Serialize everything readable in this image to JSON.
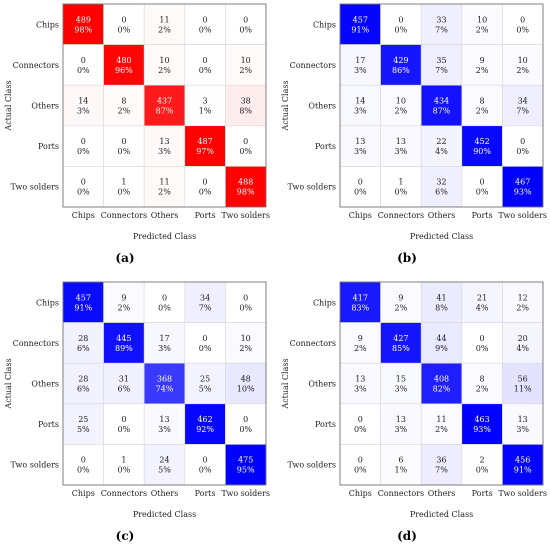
{
  "chart_data": [
    {
      "type": "heatmap",
      "panel_label": "(a)",
      "colormap": "red",
      "accent_color": "#ff0000",
      "xlabel": "Predicted Class",
      "ylabel": "Actual Class",
      "categories": [
        "Chips",
        "Connectors",
        "Others",
        "Ports",
        "Two solders"
      ],
      "counts": [
        [
          489,
          0,
          11,
          0,
          0
        ],
        [
          0,
          480,
          10,
          0,
          10
        ],
        [
          14,
          8,
          437,
          3,
          38
        ],
        [
          0,
          0,
          13,
          487,
          0
        ],
        [
          0,
          1,
          11,
          0,
          488
        ]
      ],
      "percents": [
        "98%",
        "0%",
        "2%",
        "0%",
        "0%",
        "0%",
        "96%",
        "2%",
        "0%",
        "2%",
        "3%",
        "2%",
        "87%",
        "1%",
        "8%",
        "0%",
        "0%",
        "3%",
        "97%",
        "0%",
        "0%",
        "0%",
        "2%",
        "0%",
        "98%"
      ]
    },
    {
      "type": "heatmap",
      "panel_label": "(b)",
      "colormap": "blue",
      "accent_color": "#0000ff",
      "xlabel": "Predicted Class",
      "ylabel": "Actual Class",
      "categories": [
        "Chips",
        "Connectors",
        "Others",
        "Ports",
        "Two solders"
      ],
      "counts": [
        [
          457,
          0,
          33,
          10,
          0
        ],
        [
          17,
          429,
          35,
          9,
          10
        ],
        [
          14,
          10,
          434,
          8,
          34
        ],
        [
          13,
          13,
          22,
          452,
          0
        ],
        [
          0,
          1,
          32,
          0,
          467
        ]
      ],
      "percents": [
        "91%",
        "0%",
        "7%",
        "2%",
        "0%",
        "3%",
        "86%",
        "7%",
        "2%",
        "2%",
        "3%",
        "2%",
        "87%",
        "2%",
        "7%",
        "3%",
        "3%",
        "4%",
        "90%",
        "0%",
        "0%",
        "0%",
        "6%",
        "0%",
        "93%"
      ]
    },
    {
      "type": "heatmap",
      "panel_label": "(c)",
      "colormap": "blue",
      "accent_color": "#0000ff",
      "xlabel": "Predicted Class",
      "ylabel": "Actual Class",
      "categories": [
        "Chips",
        "Connectors",
        "Others",
        "Ports",
        "Two solders"
      ],
      "counts": [
        [
          457,
          9,
          0,
          34,
          0
        ],
        [
          28,
          445,
          17,
          0,
          10
        ],
        [
          28,
          31,
          368,
          25,
          48
        ],
        [
          25,
          0,
          13,
          462,
          0
        ],
        [
          0,
          1,
          24,
          0,
          475
        ]
      ],
      "percents": [
        "91%",
        "2%",
        "0%",
        "7%",
        "0%",
        "6%",
        "89%",
        "3%",
        "0%",
        "2%",
        "6%",
        "6%",
        "74%",
        "5%",
        "10%",
        "5%",
        "0%",
        "3%",
        "92%",
        "0%",
        "0%",
        "0%",
        "5%",
        "0%",
        "95%"
      ]
    },
    {
      "type": "heatmap",
      "panel_label": "(d)",
      "colormap": "blue",
      "accent_color": "#0000ff",
      "xlabel": "Predicted Class",
      "ylabel": "Actual Class",
      "categories": [
        "Chips",
        "Connectors",
        "Others",
        "Ports",
        "Two solders"
      ],
      "counts": [
        [
          417,
          9,
          41,
          21,
          12
        ],
        [
          9,
          427,
          44,
          0,
          20
        ],
        [
          13,
          15,
          408,
          8,
          56
        ],
        [
          0,
          13,
          11,
          463,
          13
        ],
        [
          0,
          6,
          36,
          2,
          456
        ]
      ],
      "percents": [
        "83%",
        "2%",
        "8%",
        "4%",
        "2%",
        "2%",
        "85%",
        "9%",
        "0%",
        "4%",
        "3%",
        "3%",
        "82%",
        "2%",
        "11%",
        "0%",
        "3%",
        "2%",
        "93%",
        "3%",
        "0%",
        "1%",
        "7%",
        "0%",
        "91%"
      ]
    }
  ]
}
